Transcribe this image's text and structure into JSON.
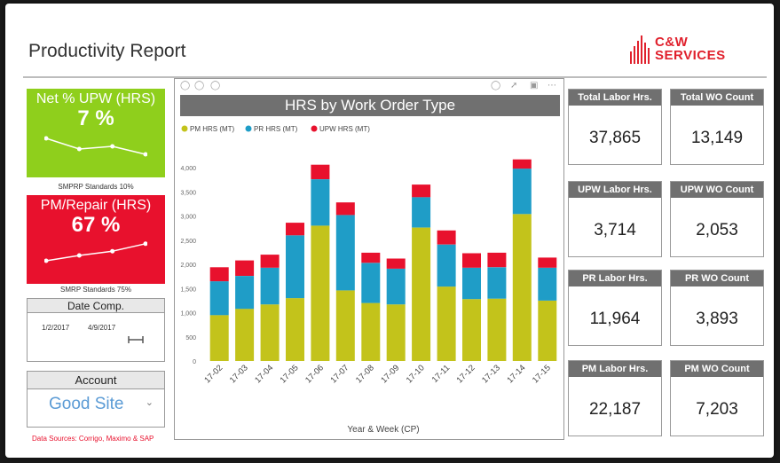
{
  "page": {
    "title": "Productivity Report"
  },
  "logo": {
    "line1": "C&W",
    "line2": "SERVICES",
    "color": "#e0212d"
  },
  "kpis": {
    "upw": {
      "title": "Net % UPW (HRS)",
      "value": "7 %",
      "note": "SMPRP Standards 10%",
      "color": "#8fcf1c",
      "trend": [
        60,
        40,
        45,
        30
      ]
    },
    "pm": {
      "title": "PM/Repair (HRS)",
      "value": "67 %",
      "note": "SMRP Standards 75%",
      "color": "#e8112d",
      "trend": [
        30,
        40,
        48,
        62
      ]
    }
  },
  "date_slicer": {
    "title": "Date Comp.",
    "start": "1/2/2017",
    "end": "4/9/2017"
  },
  "account_slicer": {
    "title": "Account",
    "value": "Good Site"
  },
  "source_note": "Data Sources: Corrigo, Maximo & SAP",
  "chart_data": {
    "type": "bar",
    "stacked": true,
    "title": "HRS by Work Order Type",
    "xlabel": "Year & Week (CP)",
    "ylabel": "",
    "ylim": [
      0,
      4000
    ],
    "yticks": [
      0,
      500,
      1000,
      1500,
      2000,
      2500,
      3000,
      3500,
      4000
    ],
    "ytick_labels": [
      "0",
      "500",
      "1,000",
      "1,500",
      "2,000",
      "2,500",
      "3,000",
      "3,500",
      "4,000"
    ],
    "grid": false,
    "legend_position": "top-left",
    "categories": [
      "17-02",
      "17-03",
      "17-04",
      "17-05",
      "17-06",
      "17-07",
      "17-08",
      "17-09",
      "17-10",
      "17-11",
      "17-12",
      "17-13",
      "17-14",
      "17-15"
    ],
    "series": [
      {
        "name": "PM HRS (MT)",
        "color": "#c3c31b",
        "values": [
          950,
          1080,
          1170,
          1300,
          2800,
          1460,
          1200,
          1170,
          2760,
          1540,
          1280,
          1290,
          3040,
          1250
        ]
      },
      {
        "name": "PR HRS (MT)",
        "color": "#1f9dc7",
        "values": [
          700,
          680,
          760,
          1300,
          960,
          1560,
          830,
          740,
          630,
          870,
          650,
          650,
          940,
          680
        ]
      },
      {
        "name": "UPW HRS (MT)",
        "color": "#e8112d",
        "values": [
          290,
          320,
          270,
          260,
          300,
          260,
          210,
          210,
          260,
          290,
          300,
          300,
          190,
          210
        ]
      }
    ]
  },
  "cards": [
    {
      "title": "Total Labor Hrs.",
      "value": "37,865"
    },
    {
      "title": "Total WO Count",
      "value": "13,149"
    },
    {
      "title": "UPW Labor Hrs.",
      "value": "3,714"
    },
    {
      "title": "UPW WO Count",
      "value": "2,053"
    },
    {
      "title": "PR Labor Hrs.",
      "value": "11,964"
    },
    {
      "title": "PR WO Count",
      "value": "3,893"
    },
    {
      "title": "PM Labor Hrs.",
      "value": "22,187"
    },
    {
      "title": "PM WO Count",
      "value": "7,203"
    }
  ]
}
